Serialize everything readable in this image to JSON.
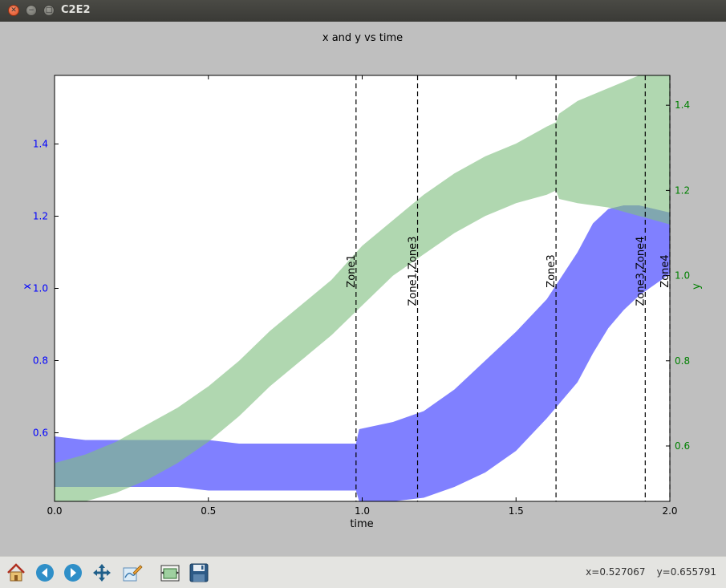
{
  "window": {
    "title": "C2E2"
  },
  "toolbar": {
    "buttons": [
      {
        "name": "home-button",
        "icon": "home-icon"
      },
      {
        "name": "back-button",
        "icon": "arrow-left-icon"
      },
      {
        "name": "forward-button",
        "icon": "arrow-right-icon"
      },
      {
        "name": "pan-button",
        "icon": "move-icon"
      },
      {
        "name": "edit-curves-button",
        "icon": "edit-icon"
      },
      {
        "name": "subplots-button",
        "icon": "subplots-icon"
      },
      {
        "name": "save-button",
        "icon": "floppy-icon"
      }
    ],
    "x_readout": "x=0.527067",
    "y_readout": "y=0.655791"
  },
  "chart_data": {
    "type": "area",
    "title": "x and y vs time",
    "xlabel": "time",
    "ylabel_left": "x",
    "ylabel_right": "y",
    "xlim": [
      0.0,
      2.0
    ],
    "ylim_left": [
      0.41,
      1.59
    ],
    "ylim_right": [
      0.47,
      1.47
    ],
    "xticks": [
      "0.0",
      "0.5",
      "1.0",
      "1.5",
      "2.0"
    ],
    "yticks_left": [
      "0.6",
      "0.8",
      "1.0",
      "1.2",
      "1.4"
    ],
    "yticks_right": [
      "0.6",
      "0.8",
      "1.0",
      "1.2",
      "1.4"
    ],
    "colors": {
      "x": "#0000ff",
      "y": "#008000",
      "x_fill": "#8080ff",
      "y_fill": "#80bf80"
    },
    "series": [
      {
        "axis": "left",
        "time": [
          0.0,
          0.1,
          0.2,
          0.3,
          0.4,
          0.5,
          0.6,
          0.7,
          0.8,
          0.9,
          0.98,
          0.99,
          1.1,
          1.2,
          1.3,
          1.4,
          1.5,
          1.6,
          1.7,
          1.75,
          1.8,
          1.85,
          1.9,
          1.95,
          2.0
        ],
        "lower": [
          0.45,
          0.45,
          0.45,
          0.45,
          0.45,
          0.44,
          0.44,
          0.44,
          0.44,
          0.44,
          0.44,
          0.41,
          0.41,
          0.42,
          0.45,
          0.49,
          0.55,
          0.64,
          0.74,
          0.82,
          0.89,
          0.94,
          0.98,
          1.01,
          1.04
        ],
        "upper": [
          0.59,
          0.58,
          0.58,
          0.58,
          0.58,
          0.58,
          0.57,
          0.57,
          0.57,
          0.57,
          0.57,
          0.61,
          0.63,
          0.66,
          0.72,
          0.8,
          0.88,
          0.97,
          1.1,
          1.18,
          1.22,
          1.23,
          1.23,
          1.22,
          1.21
        ]
      },
      {
        "axis": "right",
        "time": [
          0.0,
          0.1,
          0.2,
          0.3,
          0.4,
          0.5,
          0.6,
          0.7,
          0.8,
          0.9,
          1.0,
          1.1,
          1.2,
          1.3,
          1.4,
          1.5,
          1.6,
          1.63,
          1.64,
          1.7,
          1.8,
          1.9,
          2.0
        ],
        "lower": [
          0.47,
          0.47,
          0.49,
          0.52,
          0.56,
          0.61,
          0.67,
          0.74,
          0.8,
          0.86,
          0.93,
          1.0,
          1.05,
          1.1,
          1.14,
          1.17,
          1.19,
          1.2,
          1.18,
          1.17,
          1.16,
          1.14,
          1.12
        ],
        "upper": [
          0.56,
          0.58,
          0.61,
          0.65,
          0.69,
          0.74,
          0.8,
          0.87,
          0.93,
          0.99,
          1.07,
          1.13,
          1.19,
          1.24,
          1.28,
          1.31,
          1.35,
          1.36,
          1.38,
          1.41,
          1.44,
          1.47,
          1.47
        ]
      }
    ],
    "vlines": [
      {
        "time": 0.98,
        "label": "Zone1"
      },
      {
        "time": 1.18,
        "label": "Zone1,Zone3"
      },
      {
        "time": 1.63,
        "label": "Zone3"
      },
      {
        "time": 1.92,
        "label": "Zone3,Zone4"
      },
      {
        "time": 2.0,
        "label": "Zone4"
      }
    ]
  }
}
